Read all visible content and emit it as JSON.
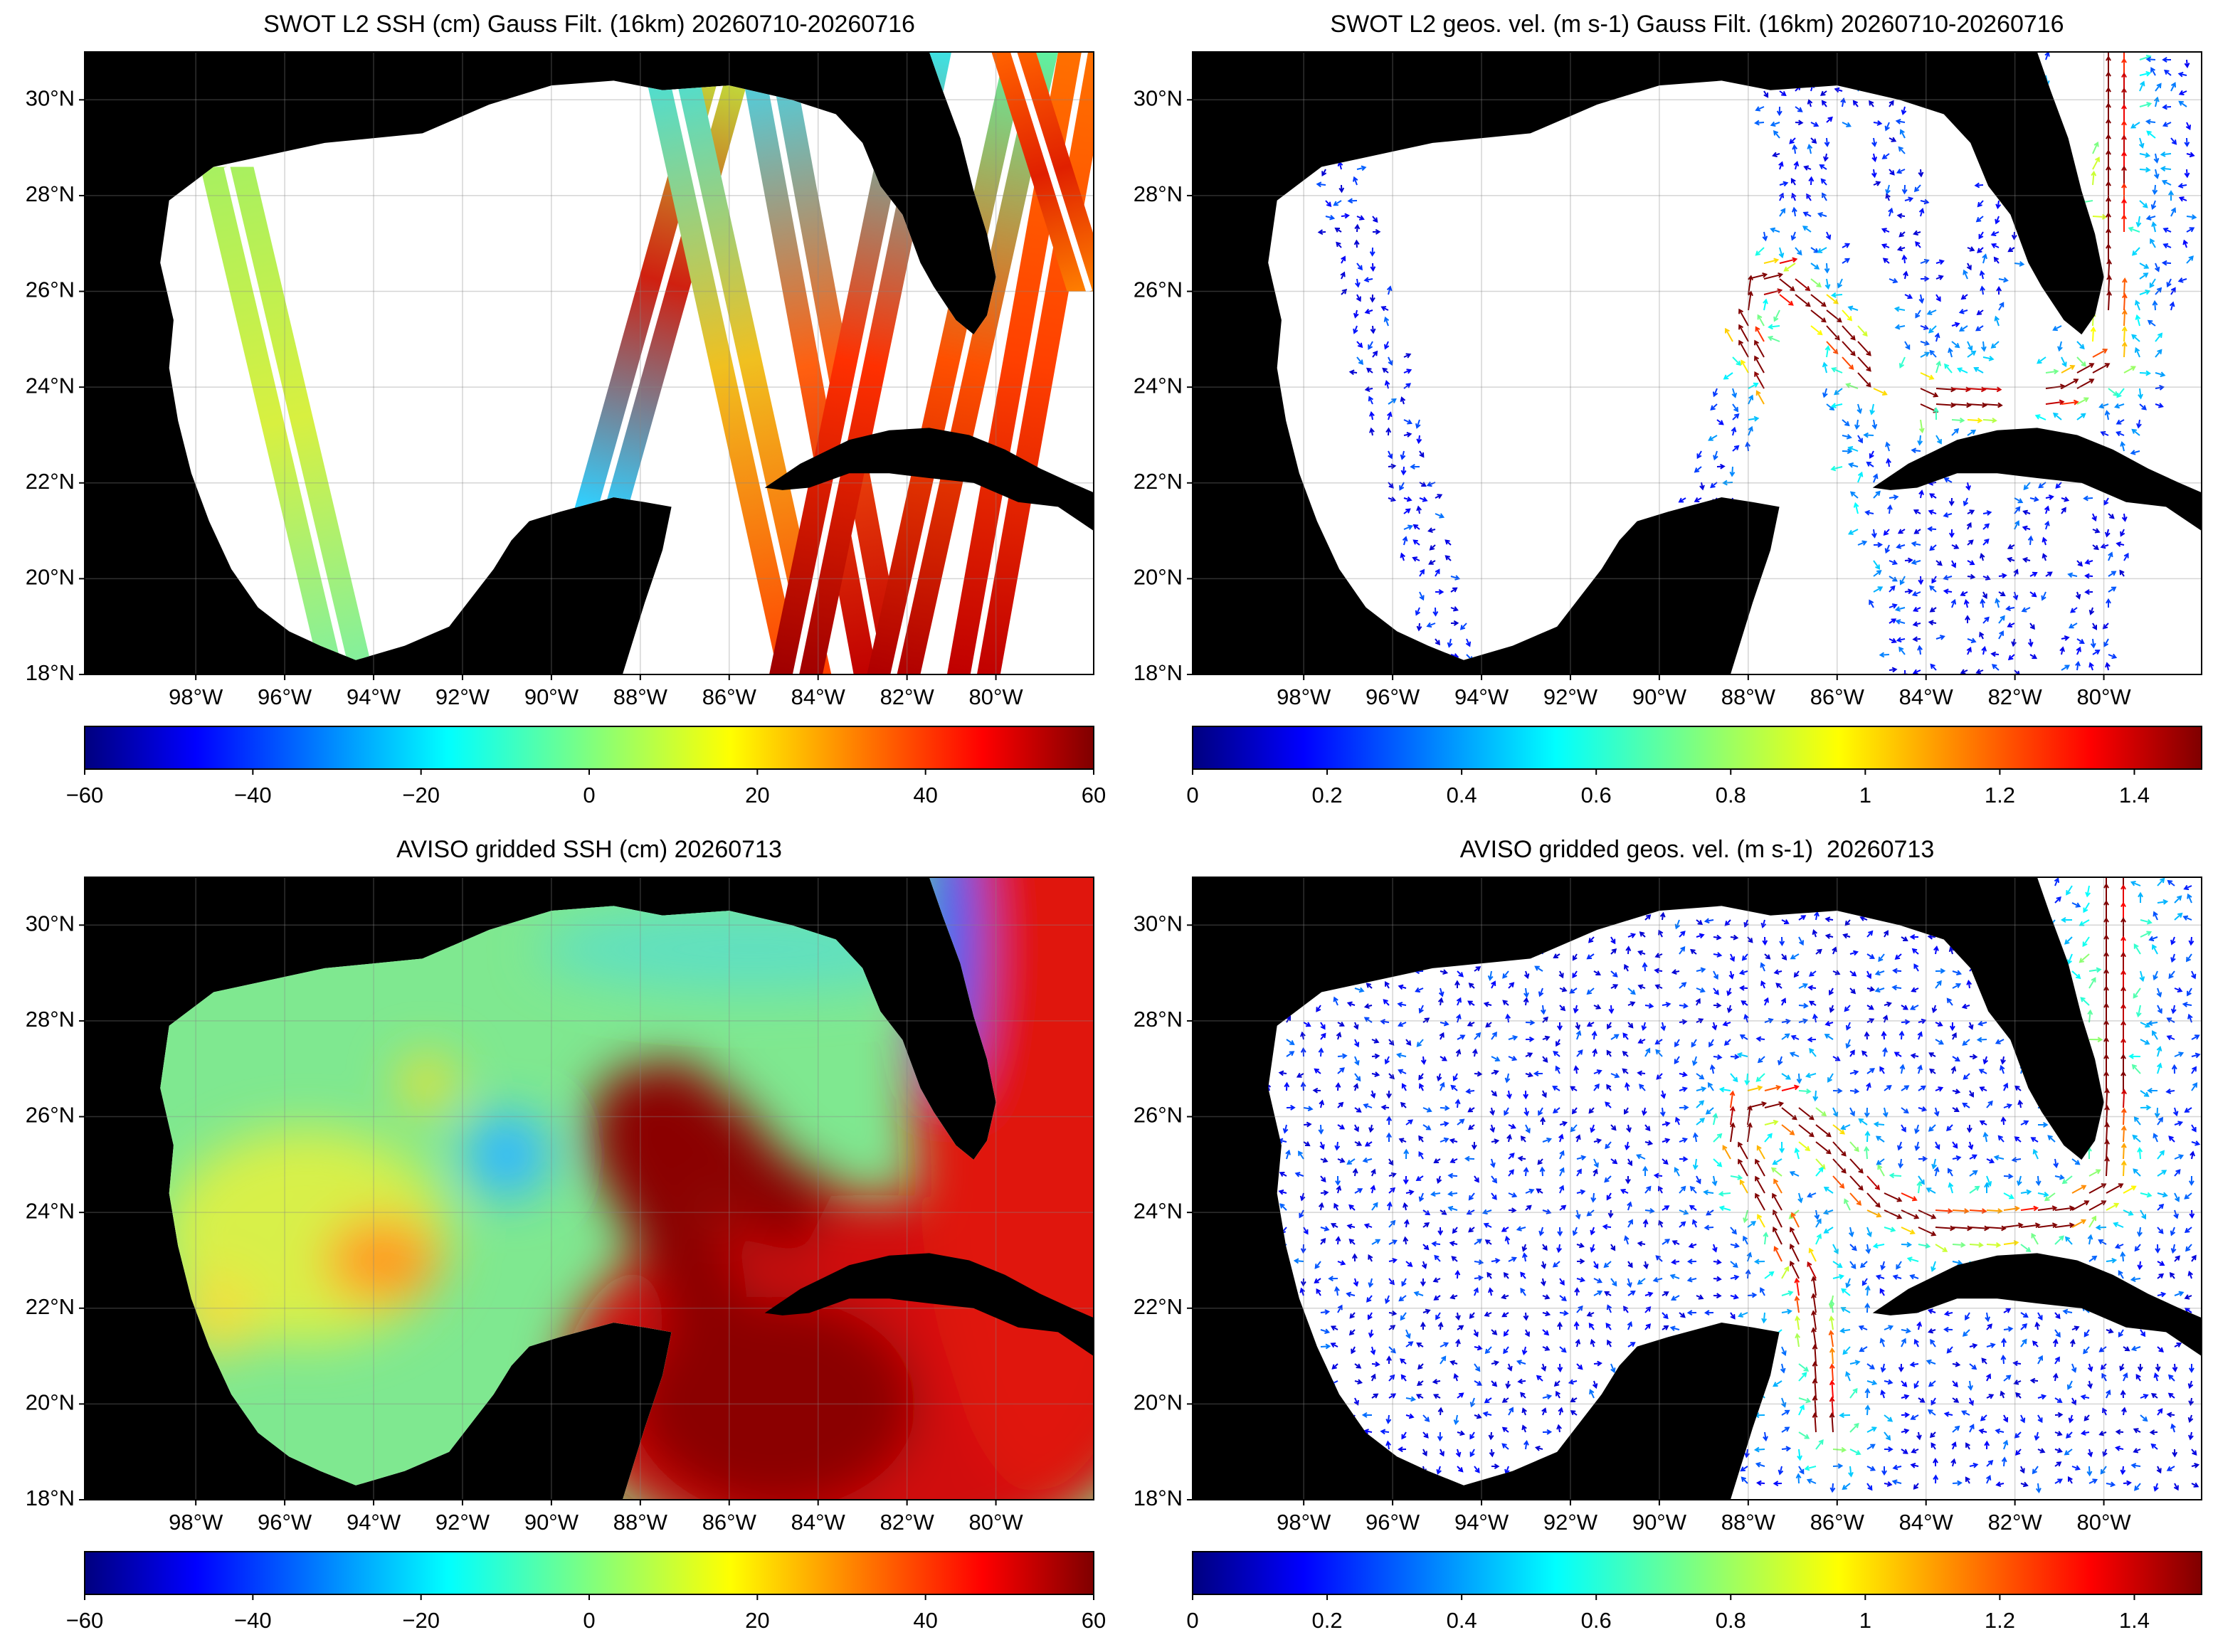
{
  "panels": [
    {
      "title": "SWOT L2 SSH (cm) Gauss Filt. (16km) 20260710-20260716",
      "lon_range": [
        -100.5,
        -77.8
      ],
      "lat_range": [
        18,
        31
      ],
      "lon_ticks": [
        {
          "value": -98,
          "label": "98°W"
        },
        {
          "value": -96,
          "label": "96°W"
        },
        {
          "value": -94,
          "label": "94°W"
        },
        {
          "value": -92,
          "label": "92°W"
        },
        {
          "value": -90,
          "label": "90°W"
        },
        {
          "value": -88,
          "label": "88°W"
        },
        {
          "value": -86,
          "label": "86°W"
        },
        {
          "value": -84,
          "label": "84°W"
        },
        {
          "value": -82,
          "label": "82°W"
        },
        {
          "value": -80,
          "label": "80°W"
        }
      ],
      "lat_ticks": [
        {
          "value": 18,
          "label": "18°N"
        },
        {
          "value": 20,
          "label": "20°N"
        },
        {
          "value": 22,
          "label": "22°N"
        },
        {
          "value": 24,
          "label": "24°N"
        },
        {
          "value": 26,
          "label": "26°N"
        },
        {
          "value": 28,
          "label": "28°N"
        },
        {
          "value": 30,
          "label": "30°N"
        }
      ],
      "colorbar": {
        "range": [
          -60,
          60
        ],
        "ticks": [
          {
            "value": -60,
            "label": "−60"
          },
          {
            "value": -40,
            "label": "−40"
          },
          {
            "value": -20,
            "label": "−20"
          },
          0,
          20,
          40,
          60
        ]
      }
    },
    {
      "title": "SWOT L2 geos. vel. (m s-1) Gauss Filt. (16km) 20260710-20260716",
      "lon_range": [
        -100.5,
        -77.8
      ],
      "lat_range": [
        18,
        31
      ],
      "lon_ticks": [
        {
          "value": -98,
          "label": "98°W"
        },
        {
          "value": -96,
          "label": "96°W"
        },
        {
          "value": -94,
          "label": "94°W"
        },
        {
          "value": -92,
          "label": "92°W"
        },
        {
          "value": -90,
          "label": "90°W"
        },
        {
          "value": -88,
          "label": "88°W"
        },
        {
          "value": -86,
          "label": "86°W"
        },
        {
          "value": -84,
          "label": "84°W"
        },
        {
          "value": -82,
          "label": "82°W"
        },
        {
          "value": -80,
          "label": "80°W"
        }
      ],
      "lat_ticks": [
        {
          "value": 18,
          "label": "18°N"
        },
        {
          "value": 20,
          "label": "20°N"
        },
        {
          "value": 22,
          "label": "22°N"
        },
        {
          "value": 24,
          "label": "24°N"
        },
        {
          "value": 26,
          "label": "26°N"
        },
        {
          "value": 28,
          "label": "28°N"
        },
        {
          "value": 30,
          "label": "30°N"
        }
      ],
      "colorbar": {
        "range": [
          0,
          1.5
        ],
        "ticks": [
          0,
          0.2,
          0.4,
          0.6,
          0.8,
          1,
          1.2,
          1.4
        ]
      }
    },
    {
      "title": "AVISO gridded SSH (cm) 20260713",
      "lon_range": [
        -100.5,
        -77.8
      ],
      "lat_range": [
        18,
        31
      ],
      "lon_ticks": [
        {
          "value": -98,
          "label": "98°W"
        },
        {
          "value": -96,
          "label": "96°W"
        },
        {
          "value": -94,
          "label": "94°W"
        },
        {
          "value": -92,
          "label": "92°W"
        },
        {
          "value": -90,
          "label": "90°W"
        },
        {
          "value": -88,
          "label": "88°W"
        },
        {
          "value": -86,
          "label": "86°W"
        },
        {
          "value": -84,
          "label": "84°W"
        },
        {
          "value": -82,
          "label": "82°W"
        },
        {
          "value": -80,
          "label": "80°W"
        }
      ],
      "lat_ticks": [
        {
          "value": 18,
          "label": "18°N"
        },
        {
          "value": 20,
          "label": "20°N"
        },
        {
          "value": 22,
          "label": "22°N"
        },
        {
          "value": 24,
          "label": "24°N"
        },
        {
          "value": 26,
          "label": "26°N"
        },
        {
          "value": 28,
          "label": "28°N"
        },
        {
          "value": 30,
          "label": "30°N"
        }
      ],
      "colorbar": {
        "range": [
          -60,
          60
        ],
        "ticks": [
          {
            "value": -60,
            "label": "−60"
          },
          {
            "value": -40,
            "label": "−40"
          },
          {
            "value": -20,
            "label": "−20"
          },
          0,
          20,
          40,
          60
        ]
      }
    },
    {
      "title": "AVISO gridded geos. vel. (m s-1)  20260713",
      "lon_range": [
        -100.5,
        -77.8
      ],
      "lat_range": [
        18,
        31
      ],
      "lon_ticks": [
        {
          "value": -98,
          "label": "98°W"
        },
        {
          "value": -96,
          "label": "96°W"
        },
        {
          "value": -94,
          "label": "94°W"
        },
        {
          "value": -92,
          "label": "92°W"
        },
        {
          "value": -90,
          "label": "90°W"
        },
        {
          "value": -88,
          "label": "88°W"
        },
        {
          "value": -86,
          "label": "86°W"
        },
        {
          "value": -84,
          "label": "84°W"
        },
        {
          "value": -82,
          "label": "82°W"
        },
        {
          "value": -80,
          "label": "80°W"
        }
      ],
      "lat_ticks": [
        {
          "value": 18,
          "label": "18°N"
        },
        {
          "value": 20,
          "label": "20°N"
        },
        {
          "value": 22,
          "label": "22°N"
        },
        {
          "value": 24,
          "label": "24°N"
        },
        {
          "value": 26,
          "label": "26°N"
        },
        {
          "value": 28,
          "label": "28°N"
        },
        {
          "value": 30,
          "label": "30°N"
        }
      ],
      "colorbar": {
        "range": [
          0,
          1.5
        ],
        "ticks": [
          0,
          0.2,
          0.4,
          0.6,
          0.8,
          1,
          1.2,
          1.4
        ]
      }
    }
  ]
}
